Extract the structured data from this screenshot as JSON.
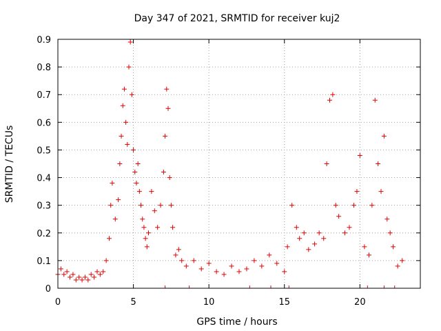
{
  "chart_data": {
    "type": "scatter",
    "title": "Day 347 of 2021, SRMTID for receiver kuj2",
    "xlabel": "GPS time / hours",
    "ylabel": "SRMTID / TECUs",
    "xlim": [
      0,
      24
    ],
    "ylim": [
      0,
      0.9
    ],
    "xticks": [
      0,
      5,
      10,
      15,
      20
    ],
    "xtick_labels": [
      "0",
      "5",
      "10",
      "15",
      "20"
    ],
    "yticks": [
      0,
      0.1,
      0.2,
      0.3,
      0.4,
      0.5,
      0.6,
      0.7,
      0.8,
      0.9
    ],
    "ytick_labels": [
      "0",
      "0.1",
      "0.2",
      "0.3",
      "0.4",
      "0.5",
      "0.6",
      "0.7",
      "0.8",
      "0.9"
    ],
    "grid": true,
    "marker": "+",
    "marker_color": "#e00000",
    "series": [
      {
        "name": "SRMTID",
        "x": [
          0.0,
          0.2,
          0.4,
          0.6,
          0.8,
          1.0,
          1.2,
          1.4,
          1.6,
          1.8,
          2.0,
          2.2,
          2.4,
          2.6,
          2.8,
          3.0,
          3.2,
          3.4,
          3.5,
          3.6,
          3.8,
          4.0,
          4.1,
          4.2,
          4.3,
          4.4,
          4.5,
          4.6,
          4.7,
          4.8,
          4.9,
          5.0,
          5.1,
          5.2,
          5.3,
          5.4,
          5.5,
          5.6,
          5.7,
          5.8,
          5.9,
          6.0,
          6.2,
          6.4,
          6.6,
          6.8,
          7.0,
          7.1,
          7.2,
          7.3,
          7.4,
          7.5,
          7.6,
          7.8,
          8.0,
          8.2,
          8.5,
          9.0,
          9.5,
          10.0,
          10.5,
          11.0,
          11.5,
          12.0,
          12.5,
          13.0,
          13.5,
          14.0,
          14.5,
          15.0,
          15.2,
          15.5,
          15.8,
          16.0,
          16.3,
          16.6,
          17.0,
          17.3,
          17.6,
          17.8,
          18.0,
          18.2,
          18.4,
          18.6,
          19.0,
          19.3,
          19.6,
          19.8,
          20.0,
          20.3,
          20.6,
          20.8,
          21.0,
          21.2,
          21.4,
          21.6,
          21.8,
          22.0,
          22.2,
          22.5,
          22.8
        ],
        "y": [
          0.05,
          0.07,
          0.05,
          0.06,
          0.04,
          0.05,
          0.03,
          0.04,
          0.03,
          0.04,
          0.03,
          0.05,
          0.04,
          0.06,
          0.05,
          0.06,
          0.1,
          0.18,
          0.3,
          0.38,
          0.25,
          0.32,
          0.45,
          0.55,
          0.66,
          0.72,
          0.6,
          0.52,
          0.8,
          0.89,
          0.7,
          0.5,
          0.42,
          0.38,
          0.45,
          0.35,
          0.3,
          0.25,
          0.22,
          0.18,
          0.15,
          0.2,
          0.35,
          0.28,
          0.22,
          0.3,
          0.42,
          0.55,
          0.72,
          0.65,
          0.4,
          0.3,
          0.22,
          0.12,
          0.14,
          0.1,
          0.08,
          0.1,
          0.07,
          0.09,
          0.06,
          0.05,
          0.08,
          0.06,
          0.07,
          0.1,
          0.08,
          0.12,
          0.09,
          0.06,
          0.15,
          0.3,
          0.22,
          0.18,
          0.2,
          0.14,
          0.16,
          0.2,
          0.18,
          0.45,
          0.68,
          0.7,
          0.3,
          0.26,
          0.2,
          0.22,
          0.3,
          0.35,
          0.48,
          0.15,
          0.12,
          0.3,
          0.68,
          0.45,
          0.35,
          0.55,
          0.25,
          0.2,
          0.15,
          0.08,
          0.1
        ]
      }
    ],
    "baseline_markers_x": [
      7.1,
      8.7,
      12.7,
      14.1,
      15.3,
      20.5,
      21.6,
      22.3
    ]
  }
}
